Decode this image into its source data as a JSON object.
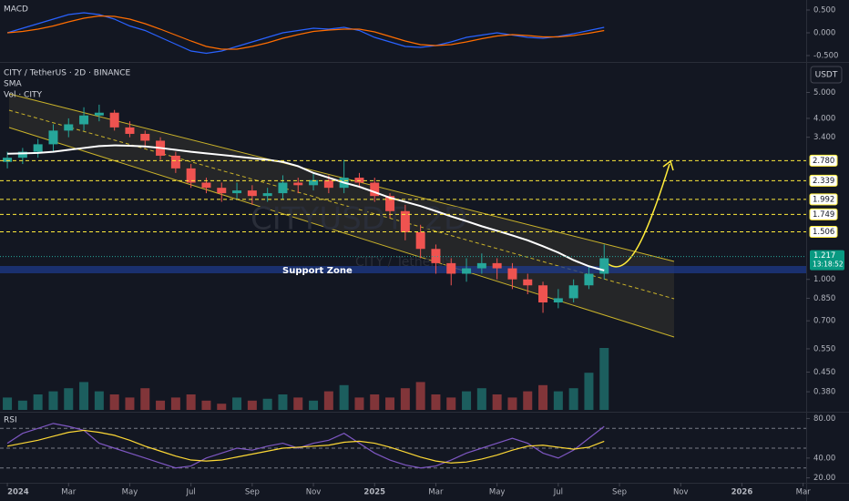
{
  "chart_data": [
    {
      "type": "candlestick",
      "title": "CITY / TetherUS · 2D · BINANCE",
      "indicators": [
        "SMA",
        "Vol · CITY"
      ],
      "unit": "USDT",
      "watermark": [
        "CITYUSDT, 2D",
        "CITY / TetherUS"
      ],
      "annotation": "Support Zone",
      "log_scale": true,
      "up_color": "#26a69a",
      "down_color": "#ef5350",
      "x": [
        0,
        0.5,
        1,
        1.5,
        2,
        2.5,
        3,
        3.5,
        4,
        4.5,
        5,
        5.5,
        6,
        6.5,
        7,
        7.5,
        8,
        8.5,
        9,
        9.5,
        10,
        10.5,
        11,
        11.5,
        12,
        12.5,
        13,
        13.5,
        14,
        14.5,
        15,
        15.5,
        16,
        16.5,
        17,
        17.5,
        18,
        18.5,
        19,
        19.5
      ],
      "open": [
        2.75,
        2.85,
        3.0,
        3.2,
        3.6,
        3.8,
        4.1,
        4.2,
        3.7,
        3.5,
        3.3,
        2.9,
        2.6,
        2.3,
        2.2,
        2.1,
        2.15,
        2.05,
        2.1,
        2.3,
        2.25,
        2.35,
        2.2,
        2.4,
        2.3,
        2.05,
        1.8,
        1.5,
        1.3,
        1.15,
        1.05,
        1.1,
        1.15,
        1.1,
        1.0,
        0.95,
        0.82,
        0.85,
        0.95,
        1.05
      ],
      "high": [
        3.0,
        3.1,
        3.35,
        3.8,
        4.0,
        4.4,
        4.5,
        4.3,
        3.9,
        3.6,
        3.4,
        3.0,
        2.7,
        2.4,
        2.3,
        2.3,
        2.25,
        2.2,
        2.45,
        2.4,
        2.5,
        2.45,
        2.8,
        2.5,
        2.4,
        2.1,
        1.9,
        1.6,
        1.35,
        1.2,
        1.2,
        1.25,
        1.2,
        1.15,
        1.05,
        0.98,
        0.92,
        1.0,
        1.12,
        1.35
      ],
      "low": [
        2.6,
        2.7,
        2.85,
        3.0,
        3.4,
        3.6,
        3.9,
        3.6,
        3.4,
        3.1,
        2.8,
        2.5,
        2.2,
        2.1,
        1.95,
        2.0,
        1.9,
        1.95,
        2.0,
        2.1,
        2.15,
        2.1,
        2.1,
        2.2,
        1.95,
        1.7,
        1.4,
        1.2,
        1.05,
        0.95,
        0.98,
        1.05,
        1.0,
        0.92,
        0.88,
        0.75,
        0.78,
        0.82,
        0.92,
        1.0
      ],
      "close": [
        2.85,
        3.0,
        3.2,
        3.6,
        3.8,
        4.1,
        4.2,
        3.7,
        3.5,
        3.3,
        2.9,
        2.6,
        2.3,
        2.2,
        2.1,
        2.15,
        2.05,
        2.1,
        2.3,
        2.25,
        2.35,
        2.2,
        2.4,
        2.3,
        2.05,
        1.8,
        1.5,
        1.3,
        1.15,
        1.05,
        1.1,
        1.15,
        1.1,
        1.0,
        0.95,
        0.82,
        0.85,
        0.95,
        1.05,
        1.2
      ],
      "sma": {
        "color": "#ffffff",
        "values": [
          2.95,
          2.96,
          2.97,
          3.0,
          3.05,
          3.1,
          3.15,
          3.17,
          3.16,
          3.14,
          3.1,
          3.05,
          3.0,
          2.96,
          2.92,
          2.88,
          2.84,
          2.8,
          2.75,
          2.65,
          2.5,
          2.4,
          2.3,
          2.22,
          2.12,
          2.02,
          1.95,
          1.88,
          1.8,
          1.72,
          1.65,
          1.58,
          1.52,
          1.46,
          1.4,
          1.33,
          1.26,
          1.18,
          1.12,
          1.08
        ]
      },
      "xlim": [
        -0.24,
        26.1
      ],
      "ylim": [
        0.32,
        6.4
      ],
      "yticks": [
        {
          "value": 5,
          "label": "5.000"
        },
        {
          "value": 4,
          "label": "4.000"
        },
        {
          "value": 3.4,
          "label": "3.400"
        },
        {
          "value": 1,
          "label": "1.000"
        },
        {
          "value": 0.85,
          "label": "0.850"
        },
        {
          "value": 0.7,
          "label": "0.700"
        },
        {
          "value": 0.55,
          "label": "0.550"
        },
        {
          "value": 0.45,
          "label": "0.450"
        },
        {
          "value": 0.38,
          "label": "0.380"
        }
      ],
      "levels": [
        {
          "value": 2.78,
          "label": "2.780"
        },
        {
          "value": 2.339,
          "label": "2.339"
        },
        {
          "value": 1.992,
          "label": "1.992"
        },
        {
          "value": 1.749,
          "label": "1.749"
        },
        {
          "value": 1.506,
          "label": "1.506"
        }
      ],
      "level_color": "#ffeb3b",
      "last_price": {
        "value": 1.217,
        "label": "1.217",
        "countdown": "13:18:52"
      }
    },
    {
      "type": "bar",
      "x": [
        0,
        0.5,
        1,
        1.5,
        2,
        2.5,
        3,
        3.5,
        4,
        4.5,
        5,
        5.5,
        6,
        6.5,
        7,
        7.5,
        8,
        8.5,
        9,
        9.5,
        10,
        10.5,
        11,
        11.5,
        12,
        12.5,
        13,
        13.5,
        14,
        14.5,
        15,
        15.5,
        16,
        16.5,
        17,
        17.5,
        18,
        18.5,
        19,
        19.5
      ],
      "values": [
        20,
        15,
        25,
        30,
        35,
        45,
        30,
        25,
        20,
        35,
        15,
        20,
        25,
        15,
        10,
        20,
        15,
        18,
        25,
        20,
        15,
        30,
        40,
        20,
        25,
        20,
        35,
        45,
        25,
        20,
        30,
        35,
        25,
        20,
        30,
        40,
        30,
        35,
        60,
        100
      ],
      "xlim": [
        -0.24,
        26.1
      ]
    },
    {
      "type": "line",
      "title": "MACD",
      "x": [
        0,
        0.5,
        1,
        1.5,
        2,
        2.5,
        3,
        3.5,
        4,
        4.5,
        5,
        5.5,
        6,
        6.5,
        7,
        7.5,
        8,
        8.5,
        9,
        9.5,
        10,
        10.5,
        11,
        11.5,
        12,
        12.5,
        13,
        13.5,
        14,
        14.5,
        15,
        15.5,
        16,
        16.5,
        17,
        17.5,
        18,
        18.5,
        19,
        19.5
      ],
      "series": [
        {
          "color": "#2962ff",
          "values": [
            0.0,
            0.1,
            0.2,
            0.3,
            0.4,
            0.44,
            0.4,
            0.3,
            0.15,
            0.05,
            -0.1,
            -0.25,
            -0.4,
            -0.45,
            -0.4,
            -0.3,
            -0.2,
            -0.1,
            0.0,
            0.05,
            0.1,
            0.08,
            0.12,
            0.05,
            -0.1,
            -0.2,
            -0.3,
            -0.32,
            -0.28,
            -0.2,
            -0.1,
            -0.05,
            0.0,
            -0.05,
            -0.1,
            -0.12,
            -0.08,
            -0.02,
            0.05,
            0.12
          ]
        },
        {
          "color": "#ff6d00",
          "values": [
            0.0,
            0.03,
            0.08,
            0.15,
            0.24,
            0.32,
            0.37,
            0.36,
            0.3,
            0.2,
            0.08,
            -0.05,
            -0.18,
            -0.3,
            -0.36,
            -0.36,
            -0.3,
            -0.22,
            -0.12,
            -0.04,
            0.03,
            0.06,
            0.08,
            0.08,
            0.02,
            -0.08,
            -0.18,
            -0.26,
            -0.28,
            -0.26,
            -0.2,
            -0.13,
            -0.07,
            -0.04,
            -0.06,
            -0.09,
            -0.09,
            -0.06,
            -0.01,
            0.05
          ]
        }
      ],
      "xlim": [
        -0.24,
        26.1
      ],
      "ylim": [
        -0.64,
        0.72
      ],
      "yticks": [
        {
          "value": 0.5,
          "label": "0.500"
        },
        {
          "value": 0,
          "label": "0.000"
        },
        {
          "value": -0.5,
          "label": "-0.500"
        }
      ]
    },
    {
      "type": "line",
      "title": "RSI",
      "x": [
        0,
        0.5,
        1,
        1.5,
        2,
        2.5,
        3,
        3.5,
        4,
        4.5,
        5,
        5.5,
        6,
        6.5,
        7,
        7.5,
        8,
        8.5,
        9,
        9.5,
        10,
        10.5,
        11,
        11.5,
        12,
        12.5,
        13,
        13.5,
        14,
        14.5,
        15,
        15.5,
        16,
        16.5,
        17,
        17.5,
        18,
        18.5,
        19,
        19.5
      ],
      "series": [
        {
          "color": "#7e57c2",
          "values": [
            55,
            65,
            70,
            75,
            72,
            68,
            55,
            50,
            45,
            40,
            35,
            30,
            32,
            40,
            45,
            50,
            48,
            52,
            55,
            50,
            55,
            58,
            65,
            55,
            45,
            38,
            33,
            30,
            32,
            38,
            45,
            50,
            55,
            60,
            55,
            45,
            40,
            48,
            60,
            72
          ]
        },
        {
          "color": "#fdd835",
          "values": [
            52,
            55,
            58,
            62,
            66,
            68,
            66,
            63,
            58,
            52,
            47,
            42,
            38,
            37,
            38,
            41,
            44,
            47,
            50,
            51,
            52,
            53,
            56,
            57,
            55,
            51,
            46,
            41,
            37,
            35,
            36,
            39,
            43,
            48,
            52,
            53,
            51,
            49,
            51,
            57
          ]
        }
      ],
      "bands": [
        70,
        50,
        30
      ],
      "xlim": [
        -0.24,
        26.1
      ],
      "ylim": [
        15,
        85
      ],
      "yticks": [
        {
          "value": 80,
          "label": "80.00"
        },
        {
          "value": 40,
          "label": "40.00"
        },
        {
          "value": 20,
          "label": "20.00"
        }
      ],
      "xticks": [
        {
          "value": 0,
          "label": "2024"
        },
        {
          "value": 2,
          "label": "Mar"
        },
        {
          "value": 4,
          "label": "May"
        },
        {
          "value": 6,
          "label": "Jul"
        },
        {
          "value": 8,
          "label": "Sep"
        },
        {
          "value": 10,
          "label": "Nov"
        },
        {
          "value": 12,
          "label": "2025"
        },
        {
          "value": 14,
          "label": "Mar"
        },
        {
          "value": 16,
          "label": "May"
        },
        {
          "value": 18,
          "label": "Jul"
        },
        {
          "value": 20,
          "label": "Sep"
        },
        {
          "value": 22,
          "label": "Nov"
        },
        {
          "value": 24,
          "label": "2026"
        },
        {
          "value": 26,
          "label": "Mar"
        }
      ]
    }
  ]
}
